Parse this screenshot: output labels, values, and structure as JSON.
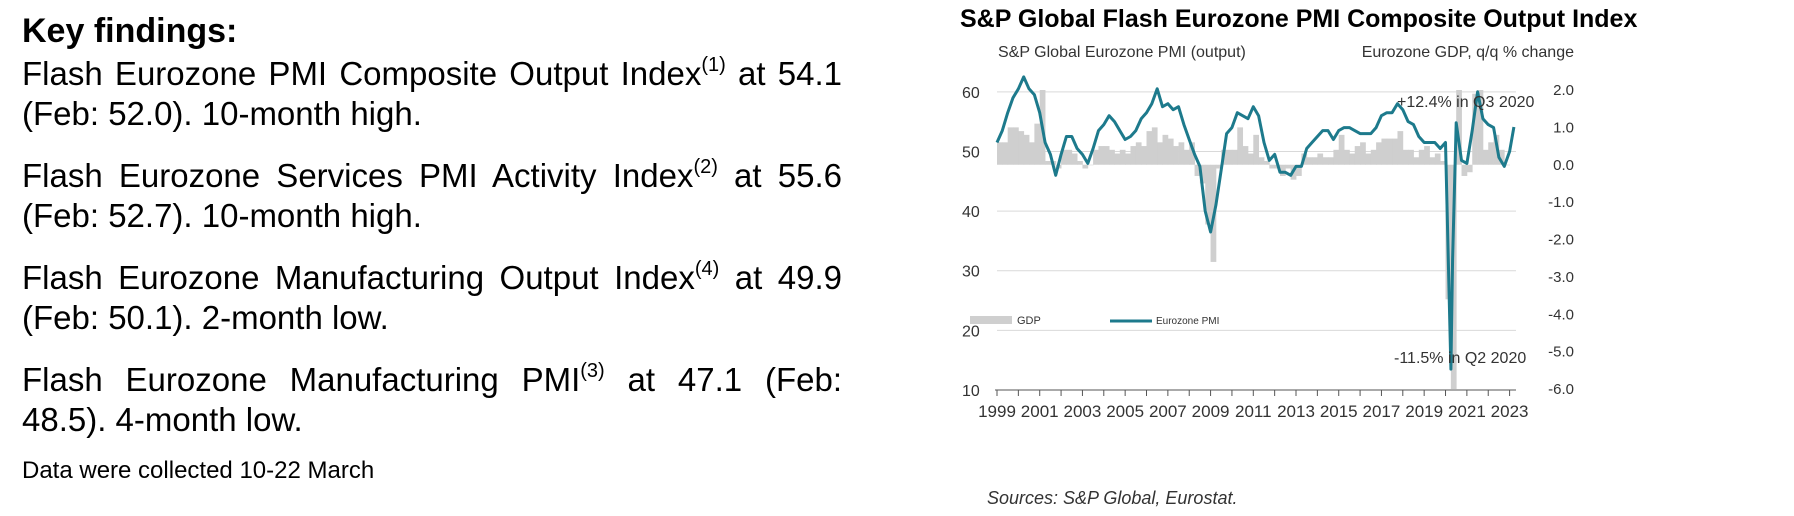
{
  "key_findings": {
    "heading": "Key findings:",
    "items": [
      {
        "pre": "Flash Eurozone PMI Composite Output Index",
        "sup": "(1)",
        "post": " at 54.1 (Feb: 52.0). 10-month high."
      },
      {
        "pre": "Flash Eurozone Services PMI Activity Index",
        "sup": "(2)",
        "post": " at 55.6 (Feb: 52.7). 10-month high."
      },
      {
        "pre": "Flash Eurozone Manufacturing Output Index",
        "sup": "(4)",
        "post": " at 49.9 (Feb: 50.1). 2-month low."
      },
      {
        "pre": "Flash Eurozone Manufacturing PMI",
        "sup": "(3)",
        "post": " at 47.1 (Feb: 48.5). 4-month low."
      }
    ],
    "footnote": "Data were collected 10-22 March"
  },
  "chart_data": {
    "type": "line",
    "title": "S&P Global Flash Eurozone PMI Composite Output Index",
    "ylabel": "S&P Global Eurozone PMI (output)",
    "y2label": "Eurozone GDP, q/q % change",
    "ylim": [
      10,
      65
    ],
    "y2lim": [
      -6.0,
      2.0
    ],
    "yticks": [
      "10",
      "20",
      "30",
      "40",
      "50",
      "60"
    ],
    "y2ticks": [
      "2.0",
      "1.0",
      "0.0",
      "-1.0",
      "-2.0",
      "-3.0",
      "-4.0",
      "-5.0",
      "-6.0"
    ],
    "xticks": [
      "1999",
      "2001",
      "2003",
      "2005",
      "2007",
      "2009",
      "2011",
      "2013",
      "2015",
      "2017",
      "2019",
      "2021",
      "2023"
    ],
    "grid": true,
    "legend_position": "middle-left",
    "annotations": [
      "+12.4% in Q3 2020",
      "-11.5% in Q2 2020"
    ],
    "sources": "Sources: S&P Global, Eurostat.",
    "series": [
      {
        "name": "GDP",
        "type": "bar",
        "axis": "right",
        "color": "#cfcfcf",
        "x": [
          1999.0,
          1999.25,
          1999.5,
          1999.75,
          2000.0,
          2000.25,
          2000.5,
          2000.75,
          2001.0,
          2001.25,
          2001.5,
          2001.75,
          2002.0,
          2002.25,
          2002.5,
          2002.75,
          2003.0,
          2003.25,
          2003.5,
          2003.75,
          2004.0,
          2004.25,
          2004.5,
          2004.75,
          2005.0,
          2005.25,
          2005.5,
          2005.75,
          2006.0,
          2006.25,
          2006.5,
          2006.75,
          2007.0,
          2007.25,
          2007.5,
          2007.75,
          2008.0,
          2008.25,
          2008.5,
          2008.75,
          2009.0,
          2009.25,
          2009.5,
          2009.75,
          2010.0,
          2010.25,
          2010.5,
          2010.75,
          2011.0,
          2011.25,
          2011.5,
          2011.75,
          2012.0,
          2012.25,
          2012.5,
          2012.75,
          2013.0,
          2013.25,
          2013.5,
          2013.75,
          2014.0,
          2014.25,
          2014.5,
          2014.75,
          2015.0,
          2015.25,
          2015.5,
          2015.75,
          2016.0,
          2016.25,
          2016.5,
          2016.75,
          2017.0,
          2017.25,
          2017.5,
          2017.75,
          2018.0,
          2018.25,
          2018.5,
          2018.75,
          2019.0,
          2019.25,
          2019.5,
          2019.75,
          2020.0,
          2020.25,
          2020.5,
          2020.75,
          2021.0,
          2021.25,
          2021.5,
          2021.75,
          2022.0,
          2022.25,
          2022.5,
          2022.75
        ],
        "values": [
          0.6,
          0.6,
          1.0,
          1.0,
          0.9,
          0.8,
          0.6,
          1.1,
          2.0,
          0.1,
          0.1,
          -0.1,
          0.4,
          0.4,
          0.3,
          0.1,
          -0.1,
          0.0,
          0.4,
          0.5,
          0.5,
          0.4,
          0.3,
          0.4,
          0.3,
          0.5,
          0.6,
          0.5,
          0.9,
          1.0,
          0.6,
          0.8,
          0.7,
          0.5,
          0.6,
          0.4,
          0.6,
          -0.3,
          -0.5,
          -1.6,
          -2.6,
          -0.1,
          0.4,
          0.4,
          0.4,
          1.0,
          0.5,
          0.3,
          0.8,
          0.2,
          0.1,
          -0.1,
          -0.1,
          -0.3,
          -0.1,
          -0.4,
          -0.3,
          0.3,
          0.2,
          0.2,
          0.3,
          0.2,
          0.2,
          0.4,
          0.8,
          0.4,
          0.3,
          0.5,
          0.6,
          0.3,
          0.4,
          0.6,
          0.7,
          0.7,
          0.7,
          0.9,
          0.4,
          0.4,
          0.2,
          0.4,
          0.5,
          0.2,
          0.3,
          0.1,
          -3.6,
          -6.0,
          2.0,
          -0.3,
          -0.2,
          1.9,
          2.0,
          0.4,
          0.6,
          0.8,
          0.4,
          0.0
        ]
      },
      {
        "name": "Eurozone PMI",
        "type": "line",
        "axis": "left",
        "color": "#1d7a8c",
        "x": [
          1999.0,
          1999.25,
          1999.5,
          1999.75,
          2000.0,
          2000.25,
          2000.5,
          2000.75,
          2001.0,
          2001.25,
          2001.5,
          2001.75,
          2002.0,
          2002.25,
          2002.5,
          2002.75,
          2003.0,
          2003.25,
          2003.5,
          2003.75,
          2004.0,
          2004.25,
          2004.5,
          2004.75,
          2005.0,
          2005.25,
          2005.5,
          2005.75,
          2006.0,
          2006.25,
          2006.5,
          2006.75,
          2007.0,
          2007.25,
          2007.5,
          2007.75,
          2008.0,
          2008.25,
          2008.5,
          2008.75,
          2009.0,
          2009.25,
          2009.5,
          2009.75,
          2010.0,
          2010.25,
          2010.5,
          2010.75,
          2011.0,
          2011.25,
          2011.5,
          2011.75,
          2012.0,
          2012.25,
          2012.5,
          2012.75,
          2013.0,
          2013.25,
          2013.5,
          2013.75,
          2014.0,
          2014.25,
          2014.5,
          2014.75,
          2015.0,
          2015.25,
          2015.5,
          2015.75,
          2016.0,
          2016.25,
          2016.5,
          2016.75,
          2017.0,
          2017.25,
          2017.5,
          2017.75,
          2018.0,
          2018.25,
          2018.5,
          2018.75,
          2019.0,
          2019.25,
          2019.5,
          2019.75,
          2020.0,
          2020.25,
          2020.33,
          2020.5,
          2020.75,
          2021.0,
          2021.25,
          2021.5,
          2021.75,
          2022.0,
          2022.25,
          2022.5,
          2022.75,
          2023.0,
          2023.2
        ],
        "values": [
          51.5,
          53.5,
          56.5,
          59.0,
          60.5,
          62.5,
          60.5,
          59.5,
          56.5,
          51.5,
          49.5,
          46.0,
          49.5,
          52.5,
          52.5,
          50.5,
          49.5,
          48.0,
          50.5,
          53.5,
          54.5,
          56.0,
          55.0,
          53.5,
          52.0,
          52.5,
          53.5,
          55.5,
          56.5,
          58.0,
          60.5,
          57.5,
          58.0,
          57.0,
          57.5,
          54.5,
          52.0,
          49.5,
          47.5,
          40.0,
          36.5,
          41.0,
          47.0,
          53.0,
          54.0,
          56.5,
          56.0,
          55.5,
          57.5,
          56.0,
          51.5,
          48.5,
          49.5,
          46.5,
          46.5,
          46.0,
          47.5,
          47.5,
          50.5,
          51.5,
          52.5,
          53.5,
          53.5,
          52.0,
          53.5,
          54.0,
          54.0,
          53.5,
          53.0,
          53.0,
          53.0,
          54.0,
          56.0,
          56.5,
          56.5,
          58.0,
          57.0,
          55.0,
          54.5,
          52.5,
          51.5,
          51.5,
          51.5,
          50.5,
          51.5,
          13.5,
          32.0,
          54.8,
          48.5,
          48.0,
          53.5,
          60.0,
          55.5,
          54.5,
          54.0,
          49.0,
          47.5,
          50.0,
          54.1
        ]
      }
    ]
  }
}
